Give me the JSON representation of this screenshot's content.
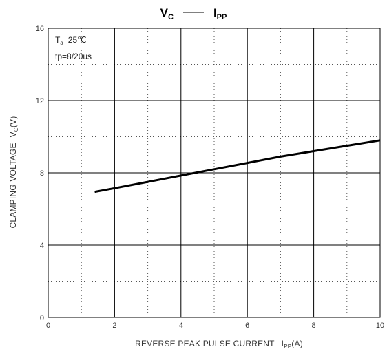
{
  "chart_data": {
    "type": "line",
    "title": {
      "left_main": "V",
      "left_sub": "C",
      "dash": "——",
      "right_main": "I",
      "right_sub": "PP"
    },
    "xlabel": {
      "main": "REVERSE PEAK PULSE CURRENT",
      "sym": "I",
      "sub": "PP",
      "unit": "(A)"
    },
    "ylabel": {
      "main": "CLAMPING VOLTAGE",
      "sym": "V",
      "sub": "C",
      "unit": "(V)"
    },
    "annotations": {
      "temp_prefix": "T",
      "temp_sub": "a",
      "temp_value": "=25℃",
      "pulse": "tp=8/20us"
    },
    "xlim": [
      0,
      10
    ],
    "ylim": [
      0,
      16
    ],
    "x_ticks": [
      "0",
      "2",
      "4",
      "6",
      "8",
      "10"
    ],
    "y_ticks": [
      "0",
      "4",
      "8",
      "12",
      "16"
    ],
    "grid": {
      "major_x": [
        0,
        2,
        4,
        6,
        8,
        10
      ],
      "minor_x": [
        1,
        3,
        5,
        7,
        9
      ],
      "major_y": [
        0,
        4,
        8,
        12,
        16
      ],
      "minor_y": [
        2,
        6,
        10,
        14
      ]
    },
    "series": [
      {
        "x": [
          1.4,
          2,
          3,
          4,
          5,
          6,
          7,
          8,
          9,
          10
        ],
        "y": [
          6.95,
          7.15,
          7.5,
          7.85,
          8.2,
          8.55,
          8.9,
          9.2,
          9.5,
          9.8
        ],
        "color": "#000000"
      }
    ]
  }
}
